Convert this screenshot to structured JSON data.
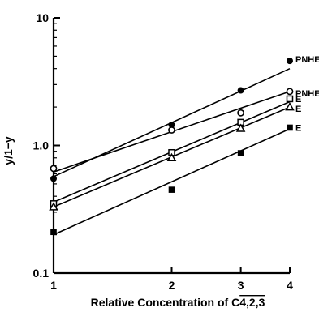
{
  "chart_data": {
    "type": "scatter",
    "title": "",
    "xlabel_text": "Relative Concentration of C",
    "xlabel_sub": "4,2,3",
    "ylabel": "y/1−y",
    "x_scale": "log",
    "y_scale": "log",
    "xlim": [
      1,
      4
    ],
    "ylim": [
      0.1,
      10
    ],
    "x_ticks": [
      1,
      2,
      3,
      4
    ],
    "x_tick_labels": [
      "1",
      "2",
      "3",
      "4"
    ],
    "y_ticks": [
      0.1,
      1,
      10
    ],
    "y_tick_labels": [
      "0.1",
      "1.0",
      "10"
    ],
    "grid": false,
    "series": [
      {
        "label": "PNHE",
        "marker": "filled-circle",
        "x": [
          1,
          2,
          3,
          4
        ],
        "y": [
          0.55,
          1.45,
          2.7,
          4.6
        ],
        "fit": [
          [
            1,
            0.57
          ],
          [
            4,
            4.0
          ]
        ]
      },
      {
        "label": "PNHE",
        "marker": "open-circle",
        "x": [
          1,
          2,
          3,
          4
        ],
        "y": [
          0.66,
          1.32,
          1.8,
          2.65
        ],
        "fit": [
          [
            1,
            0.62
          ],
          [
            4,
            2.65
          ]
        ]
      },
      {
        "label": "E",
        "marker": "open-square",
        "x": [
          1,
          2,
          3,
          4
        ],
        "y": [
          0.35,
          0.88,
          1.52,
          2.32
        ],
        "fit": [
          [
            1,
            0.36
          ],
          [
            4,
            2.2
          ]
        ]
      },
      {
        "label": "E",
        "marker": "open-triangle",
        "x": [
          1,
          2,
          3,
          4
        ],
        "y": [
          0.33,
          0.8,
          1.36,
          2.0
        ],
        "fit": [
          [
            1,
            0.33
          ],
          [
            4,
            2.0
          ]
        ]
      },
      {
        "label": "E",
        "marker": "filled-square",
        "x": [
          1,
          2,
          3,
          4
        ],
        "y": [
          0.21,
          0.45,
          0.87,
          1.38
        ],
        "fit": [
          [
            1,
            0.2
          ],
          [
            4,
            1.35
          ]
        ]
      }
    ]
  }
}
